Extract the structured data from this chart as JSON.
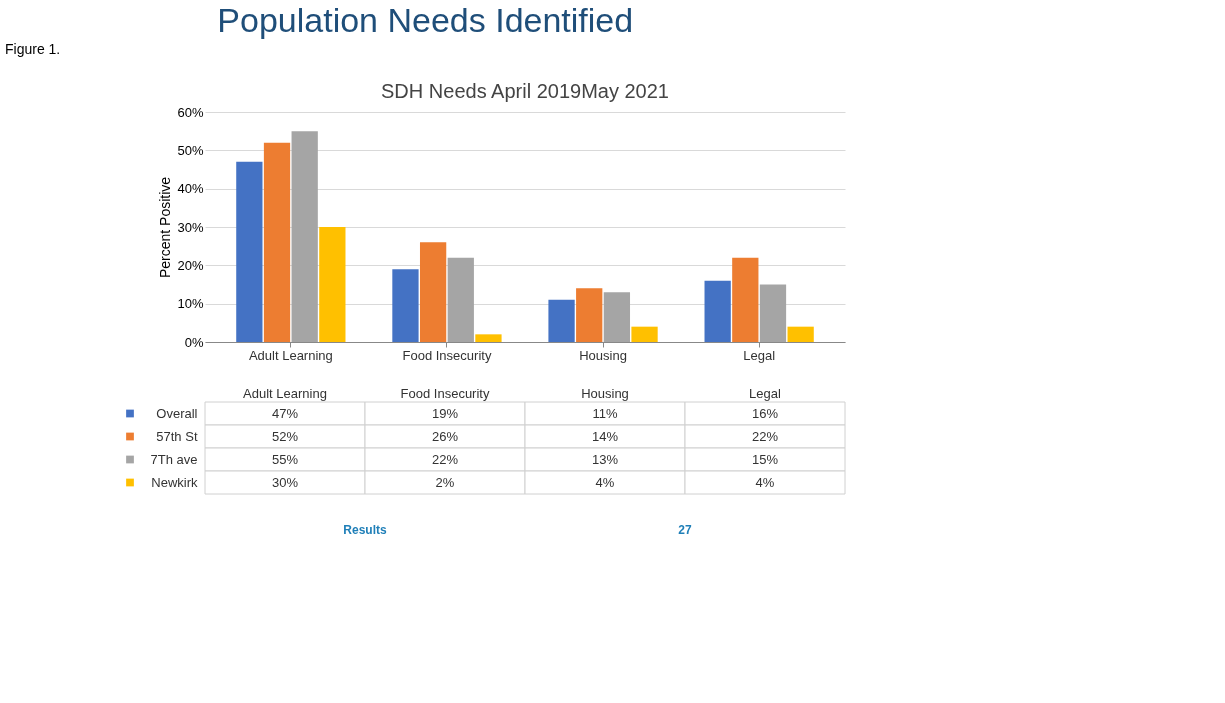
{
  "chart_data": {
    "type": "bar",
    "title": "Population Needs Identified",
    "subtitle": "SDH Needs April 2019May 2021",
    "ylabel": "Percent Positive",
    "categories": [
      "Adult Learning",
      "Food Insecurity",
      "Housing",
      "Legal"
    ],
    "series": [
      {
        "name": "Overall",
        "color": "#4472c4",
        "values": [
          47,
          19,
          11,
          16
        ],
        "value_labels": [
          "47%",
          "19%",
          "11%",
          "16%"
        ]
      },
      {
        "name": "57th St",
        "color": "#ed7d31",
        "values": [
          52,
          26,
          14,
          22
        ],
        "value_labels": [
          "52%",
          "26%",
          "14%",
          "22%"
        ]
      },
      {
        "name": "7Th ave",
        "color": "#a5a5a5",
        "values": [
          55,
          22,
          13,
          15
        ],
        "value_labels": [
          "55%",
          "22%",
          "13%",
          "15%"
        ]
      },
      {
        "name": "Newkirk",
        "color": "#ffc000",
        "values": [
          30,
          2,
          4,
          4
        ],
        "value_labels": [
          "30%",
          "2%",
          "4%",
          "4%"
        ]
      }
    ],
    "ylim": [
      0,
      60
    ],
    "yticks": [
      {
        "value": 0,
        "label": "0%"
      },
      {
        "value": 10,
        "label": "10%"
      },
      {
        "value": 20,
        "label": "20%"
      },
      {
        "value": 30,
        "label": "30%"
      },
      {
        "value": 40,
        "label": "40%"
      },
      {
        "value": 50,
        "label": "50%"
      },
      {
        "value": 60,
        "label": "60%"
      }
    ],
    "grid": "y",
    "legend": "bottom",
    "annotations": [
      "Figure 1.",
      "Results",
      "27"
    ]
  }
}
